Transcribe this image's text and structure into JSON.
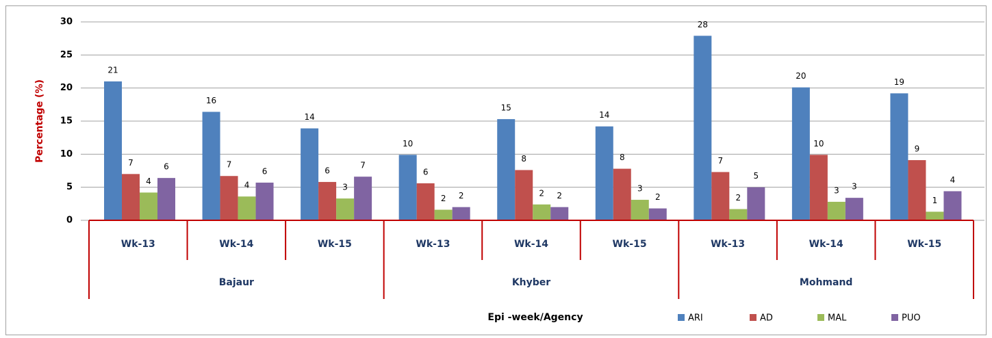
{
  "chart_data": {
    "type": "bar",
    "y_label": "Percentage (%)",
    "x_label": "Epi -week/Agency",
    "categories": [
      "Wk-13",
      "Wk-14",
      "Wk-15",
      "Wk-13",
      "Wk-14",
      "Wk-15",
      "Wk-13",
      "Wk-14",
      "Wk-15"
    ],
    "groups": [
      "Bajaur",
      "Khyber",
      "Mohmand"
    ],
    "series": [
      {
        "name": "ARI",
        "color": "#4f81bd",
        "values": [
          21.0,
          16.4,
          13.9,
          9.9,
          15.3,
          14.2,
          27.9,
          20.1,
          19.2
        ],
        "value_labels": [
          "21",
          "16",
          "14",
          "10",
          "15",
          "14",
          "28",
          "20",
          "19"
        ]
      },
      {
        "name": "AD",
        "color": "#c0504d",
        "values": [
          7.0,
          6.7,
          5.8,
          5.6,
          7.6,
          7.8,
          7.3,
          9.9,
          9.1
        ],
        "value_labels": [
          "7",
          "7",
          "6",
          "6",
          "8",
          "8",
          "7",
          "10",
          "9"
        ]
      },
      {
        "name": "MAL",
        "color": "#9bbb59",
        "values": [
          4.2,
          3.6,
          3.3,
          1.6,
          2.4,
          3.1,
          1.7,
          2.8,
          1.3
        ],
        "value_labels": [
          "4",
          "4",
          "3",
          "2",
          "2",
          "3",
          "2",
          "3",
          "1"
        ]
      },
      {
        "name": "PUO",
        "color": "#8064a2",
        "values": [
          6.4,
          5.7,
          6.6,
          2.0,
          2.0,
          1.8,
          5.0,
          3.4,
          4.4
        ],
        "value_labels": [
          "6",
          "6",
          "7",
          "2",
          "2",
          "2",
          "5",
          "3",
          "4"
        ]
      }
    ],
    "ylim": [
      0,
      30
    ],
    "yticks": [
      0,
      5,
      10,
      15,
      20,
      25,
      30
    ],
    "grid": true,
    "legend": "bottom"
  }
}
